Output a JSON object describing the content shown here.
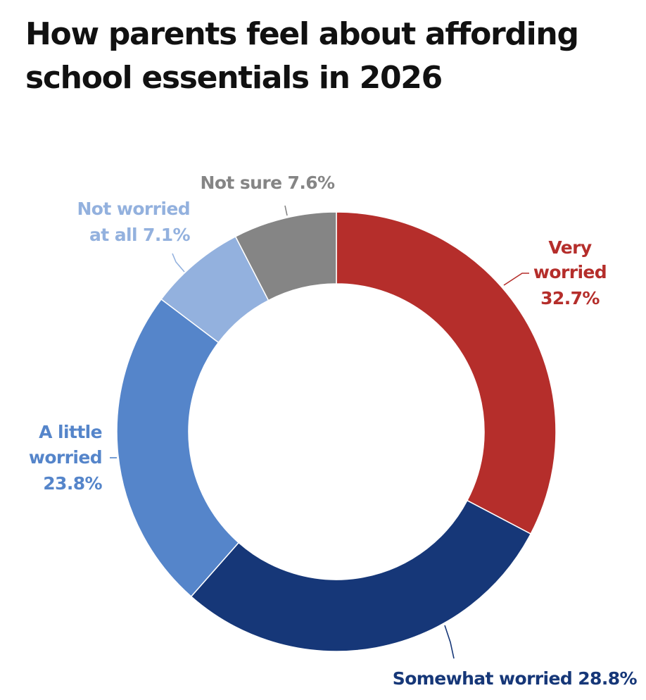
{
  "title": "How parents feel about affording school essentials in 2026",
  "chart_data": {
    "type": "pie",
    "variant": "donut",
    "title": "How parents feel about affording school essentials in 2026",
    "unit": "%",
    "legend": "none",
    "start": "top, clockwise",
    "slices": [
      {
        "label": "Very worried",
        "value": 32.7,
        "display": "32.7%",
        "color": "#b52e2b",
        "label_lines": [
          "Very",
          "worried",
          "32.7%"
        ]
      },
      {
        "label": "Somewhat worried",
        "value": 28.8,
        "display": "28.8%",
        "color": "#163778",
        "label_lines": [
          "Somewhat worried 28.8%"
        ]
      },
      {
        "label": "A little worried",
        "value": 23.8,
        "display": "23.8%",
        "color": "#5585ca",
        "label_lines": [
          "A little",
          "worried",
          "23.8%"
        ]
      },
      {
        "label": "Not worried at all",
        "value": 7.1,
        "display": "7.1%",
        "color": "#93b1de",
        "label_lines": [
          "Not worried",
          "at all 7.1%"
        ]
      },
      {
        "label": "Not sure",
        "value": 7.6,
        "display": "7.6%",
        "color": "#858585",
        "label_lines": [
          "Not sure 7.6%"
        ]
      }
    ]
  }
}
